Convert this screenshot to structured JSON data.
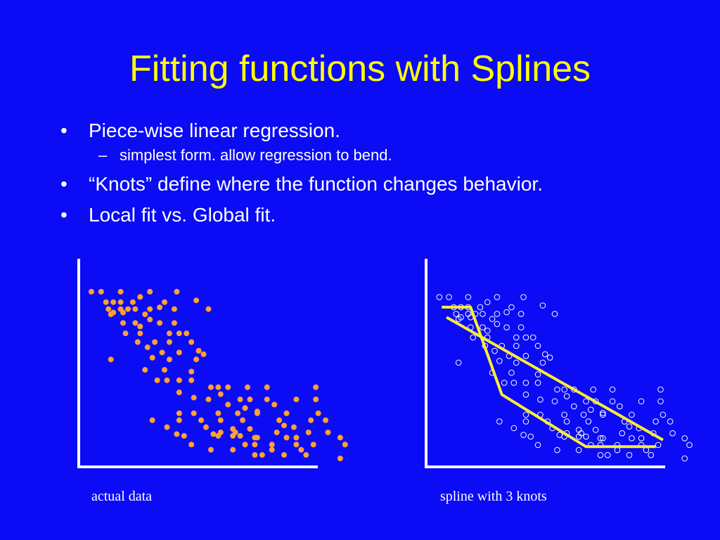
{
  "slide": {
    "title": "Fitting functions with Splines",
    "bullets": [
      {
        "mark": "•",
        "text": "Piece-wise linear regression."
      },
      {
        "mark": "•",
        "text": "“Knots” define where the function changes behavior."
      },
      {
        "mark": "•",
        "text": "Local fit vs. Global fit."
      }
    ],
    "sub_bullet": {
      "mark": "–",
      "text": "simplest form.  allow regression to bend."
    }
  },
  "colors": {
    "background": "#0b0bf5",
    "title": "#ffff00",
    "text": "#ffffff",
    "dot_fill": "#ffa033",
    "spline": "#ffee33"
  },
  "left_plot": {
    "caption": "actual data",
    "xlim": [
      0,
      100
    ],
    "ylim": [
      0,
      100
    ]
  },
  "right_plot": {
    "caption": "spline with 3 knots",
    "xlim": [
      0,
      100
    ],
    "ylim": [
      0,
      100
    ],
    "global_fit_line": [
      [
        5,
        84
      ],
      [
        95,
        11
      ]
    ],
    "spline_knots": [
      [
        3,
        90
      ],
      [
        15,
        90
      ],
      [
        28,
        38
      ],
      [
        63,
        7
      ],
      [
        92,
        7
      ]
    ]
  },
  "points": [
    [
      2,
      96
    ],
    [
      6,
      96
    ],
    [
      14,
      96
    ],
    [
      26,
      96
    ],
    [
      37,
      96
    ],
    [
      22,
      93
    ],
    [
      45,
      91
    ],
    [
      8,
      90
    ],
    [
      11,
      90
    ],
    [
      14,
      90
    ],
    [
      19,
      90
    ],
    [
      32,
      90
    ],
    [
      30,
      87
    ],
    [
      9,
      86
    ],
    [
      14,
      86
    ],
    [
      17,
      86
    ],
    [
      20,
      86
    ],
    [
      26,
      86
    ],
    [
      36,
      86
    ],
    [
      50,
      86
    ],
    [
      11,
      84
    ],
    [
      15,
      84
    ],
    [
      10,
      83
    ],
    [
      24,
      83
    ],
    [
      26,
      80
    ],
    [
      15,
      78
    ],
    [
      20,
      78
    ],
    [
      30,
      78
    ],
    [
      36,
      78
    ],
    [
      22,
      76
    ],
    [
      16,
      72
    ],
    [
      22,
      72
    ],
    [
      34,
      72
    ],
    [
      38,
      72
    ],
    [
      41,
      72
    ],
    [
      21,
      67
    ],
    [
      28,
      67
    ],
    [
      34,
      67
    ],
    [
      43,
      67
    ],
    [
      10,
      57
    ],
    [
      25,
      64
    ],
    [
      31,
      61
    ],
    [
      38,
      61
    ],
    [
      46,
      62
    ],
    [
      48,
      60
    ],
    [
      27,
      58
    ],
    [
      34,
      57
    ],
    [
      45,
      57
    ],
    [
      24,
      51
    ],
    [
      32,
      51
    ],
    [
      43,
      50
    ],
    [
      29,
      45
    ],
    [
      33,
      45
    ],
    [
      38,
      45
    ],
    [
      43,
      45
    ],
    [
      51,
      41
    ],
    [
      54,
      41
    ],
    [
      58,
      41
    ],
    [
      66,
      41
    ],
    [
      74,
      41
    ],
    [
      94,
      41
    ],
    [
      38,
      38
    ],
    [
      55,
      37
    ],
    [
      44,
      35
    ],
    [
      50,
      34
    ],
    [
      63,
      34
    ],
    [
      67,
      34
    ],
    [
      74,
      34
    ],
    [
      86,
      34
    ],
    [
      94,
      34
    ],
    [
      58,
      31
    ],
    [
      77,
      31
    ],
    [
      65,
      29
    ],
    [
      70,
      27
    ],
    [
      38,
      26
    ],
    [
      44,
      26
    ],
    [
      54,
      26
    ],
    [
      62,
      26
    ],
    [
      70,
      26
    ],
    [
      82,
      26
    ],
    [
      95,
      26
    ],
    [
      27,
      22
    ],
    [
      38,
      22
    ],
    [
      47,
      22
    ],
    [
      55,
      22
    ],
    [
      64,
      22
    ],
    [
      79,
      22
    ],
    [
      92,
      22
    ],
    [
      98,
      22
    ],
    [
      81,
      19
    ],
    [
      85,
      18
    ],
    [
      60,
      17
    ],
    [
      67,
      17
    ],
    [
      55,
      15
    ],
    [
      61,
      15
    ],
    [
      78,
      15
    ],
    [
      91,
      15
    ],
    [
      99,
      15
    ],
    [
      33,
      18
    ],
    [
      49,
      18
    ],
    [
      37,
      14
    ],
    [
      52,
      14
    ],
    [
      40,
      13
    ],
    [
      54,
      13
    ],
    [
      60,
      13
    ],
    [
      63,
      13
    ],
    [
      70,
      12
    ],
    [
      82,
      12
    ],
    [
      86,
      12
    ],
    [
      43,
      8
    ],
    [
      65,
      8
    ],
    [
      69,
      8
    ],
    [
      76,
      8
    ],
    [
      86,
      8
    ],
    [
      93,
      8
    ],
    [
      106,
      8
    ],
    [
      51,
      5
    ],
    [
      60,
      5
    ],
    [
      76,
      5
    ],
    [
      88,
      5
    ],
    [
      69,
      2
    ],
    [
      72,
      2
    ],
    [
      81,
      2
    ],
    [
      90,
      2
    ],
    [
      69,
      12
    ],
    [
      104,
      12
    ],
    [
      104,
      0
    ]
  ]
}
